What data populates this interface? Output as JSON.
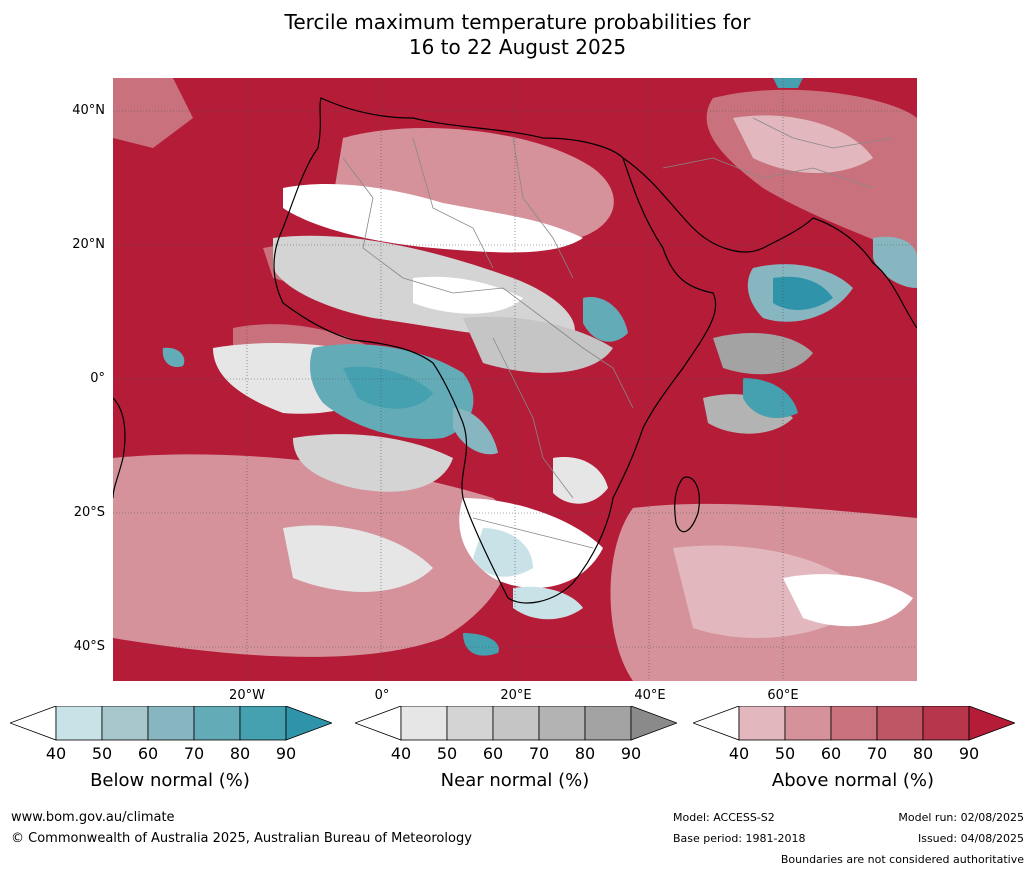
{
  "title": {
    "line1": "Tercile maximum temperature probabilities for",
    "line2": "16 to 22 August 2025"
  },
  "map": {
    "lat_labels": [
      "40°N",
      "20°N",
      "0°",
      "20°S",
      "40°S"
    ],
    "lon_labels": [
      "20°W",
      "0°",
      "20°E",
      "40°E",
      "60°E"
    ]
  },
  "colorbars": [
    {
      "label": "Below normal (%)",
      "ticks": [
        "40",
        "50",
        "60",
        "70",
        "80",
        "90"
      ],
      "colors": [
        "#ffffff",
        "#c9e2e8",
        "#a7c7cd",
        "#87b6c1",
        "#64abb8",
        "#45a0b0",
        "#2f94a9"
      ]
    },
    {
      "label": "Near normal (%)",
      "ticks": [
        "40",
        "50",
        "60",
        "70",
        "80",
        "90"
      ],
      "colors": [
        "#ffffff",
        "#e6e6e6",
        "#d4d4d4",
        "#c5c5c5",
        "#b3b3b3",
        "#a3a3a3",
        "#8a8a8a"
      ]
    },
    {
      "label": "Above normal (%)",
      "ticks": [
        "40",
        "50",
        "60",
        "70",
        "80",
        "90"
      ],
      "colors": [
        "#ffffff",
        "#e2b7bd",
        "#d5929b",
        "#c9727d",
        "#bf5665",
        "#b8364b",
        "#b51c38"
      ]
    }
  ],
  "footer": {
    "website": "www.bom.gov.au/climate",
    "copyright": "© Commonwealth of Australia 2025, Australian Bureau of Meteorology",
    "model": "Model: ACCESS-S2",
    "base_period": "Base period: 1981-2018",
    "model_run": "Model run: 02/08/2025",
    "issued": "Issued: 04/08/2025",
    "disclaimer": "Boundaries are not considered authoritative"
  }
}
